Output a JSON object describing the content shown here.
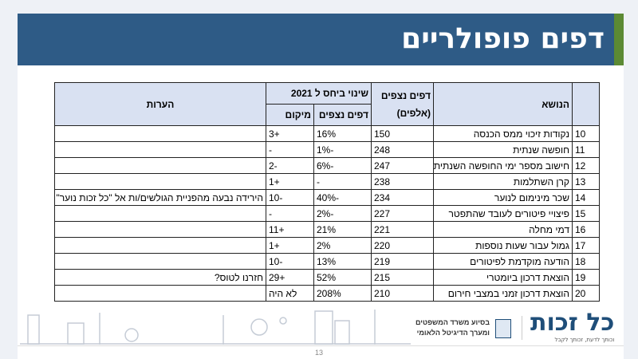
{
  "title": "דפים פופולריים",
  "table": {
    "headers": {
      "topic": "הנושא",
      "pages": "דפים נצפים",
      "pages_unit": "(אלפים)",
      "change_group": "שינוי ביחס ל 2021",
      "change_pages": "דפים נצפים",
      "change_rank": "מיקום",
      "notes": "הערות"
    },
    "rows": [
      {
        "n": "10",
        "topic": "נקודות זיכוי ממס הכנסה",
        "pages": "150",
        "change": "16%",
        "rank": "+3",
        "note": ""
      },
      {
        "n": "11",
        "topic": "חופשה שנתית",
        "pages": "248",
        "change": "-1%",
        "rank": "-",
        "note": ""
      },
      {
        "n": "12",
        "topic": "חישוב מספר ימי החופשה השנתית",
        "pages": "247",
        "change": "-6%",
        "rank": "-2",
        "note": ""
      },
      {
        "n": "13",
        "topic": "קרן השתלמות",
        "pages": "238",
        "change": "-",
        "rank": "+1",
        "note": ""
      },
      {
        "n": "14",
        "topic": "שכר מינימום לנוער",
        "pages": "234",
        "change": "-40%",
        "rank": "-10",
        "note": "הירידה נבעה מהפניית הגולשים/ות אל \"כל זכות נוער\""
      },
      {
        "n": "15",
        "topic": "פיצויי פיטורים לעובד שהתפטר",
        "pages": "227",
        "change": "-2%",
        "rank": "-",
        "note": ""
      },
      {
        "n": "16",
        "topic": "דמי מחלה",
        "pages": "221",
        "change": "21%",
        "rank": "+11",
        "note": ""
      },
      {
        "n": "17",
        "topic": "גמול עבור שעות נוספות",
        "pages": "220",
        "change": "2%",
        "rank": "+1",
        "note": ""
      },
      {
        "n": "18",
        "topic": "הודעה מוקדמת לפיטורים",
        "pages": "219",
        "change": "13%",
        "rank": "-10",
        "note": ""
      },
      {
        "n": "19",
        "topic": "הוצאת דרכון ביומטרי",
        "pages": "215",
        "change": "52%",
        "rank": "+29",
        "note": "חזרנו לטוס?"
      },
      {
        "n": "20",
        "topic": "הוצאת דרכון זמני במצבי חירום",
        "pages": "210",
        "change": "208%",
        "rank": "לא היה",
        "note": ""
      }
    ]
  },
  "footer": {
    "logo": "כל זכות",
    "tagline": "וכותך לדעת, זכותך לקבל",
    "partner_line1": "בסיוע משרד המשפטים",
    "partner_line2": "ומערך הדיגיטל הלאומי",
    "page_number": "13"
  },
  "colors": {
    "header": "#2e5b86",
    "accent": "#5c8a34",
    "table_header": "#d9e1f2"
  }
}
